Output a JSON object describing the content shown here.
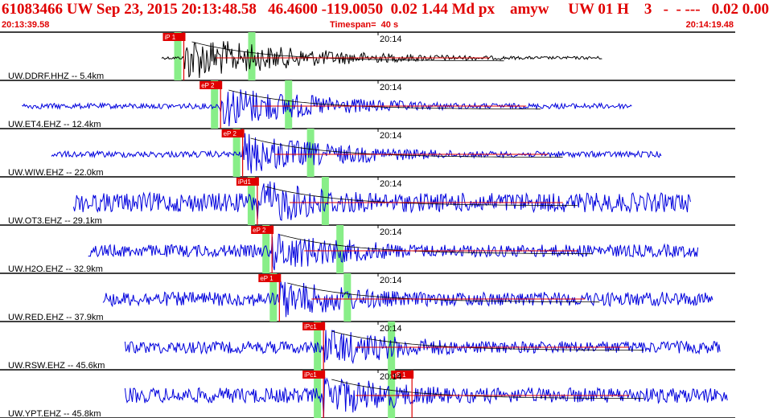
{
  "header": {
    "title": "61083466 UW Sep 23, 2015 20:13:48.58   46.4600 -119.0050  0.02 1.44 Md px    amyw     UW 01 H    3   -  - ---   0.02 0.00",
    "start_time": "20:13:39.58",
    "timespan": "Timespan=  40 s",
    "end_time": "20:14:19.48"
  },
  "tick_label": "20:14",
  "colors": {
    "header_red": "#e00000",
    "trace_first": "#000000",
    "trace": "#0000dd",
    "pick_red": "#e00000",
    "window_green": "#88ee88",
    "coda_fit": "#000000"
  },
  "traces": [
    {
      "label": "UW.DDRF.HHZ -- 5.4km",
      "pick": "iP 1",
      "pick2": "",
      "color": "black",
      "start": 0.22,
      "end": 0.82,
      "onset": 0.25,
      "amp": 30,
      "noise": 0.06
    },
    {
      "label": "UW.ET4.EHZ -- 12.4km",
      "pick": "eP 2",
      "pick2": "",
      "color": "blue",
      "start": 0.03,
      "end": 0.86,
      "onset": 0.3,
      "amp": 28,
      "noise": 0.12
    },
    {
      "label": "UW.WIW.EHZ -- 22.0km",
      "pick": "eP 2",
      "pick2": "",
      "color": "blue",
      "start": 0.07,
      "end": 0.9,
      "onset": 0.33,
      "amp": 27,
      "noise": 0.14
    },
    {
      "label": "UW.OT3.EHZ -- 29.1km",
      "pick": "iPd1",
      "pick2": "",
      "color": "blue",
      "start": 0.1,
      "end": 0.94,
      "onset": 0.35,
      "amp": 30,
      "noise": 0.4
    },
    {
      "label": "UW.H2O.EHZ -- 32.9km",
      "pick": "eP 2",
      "pick2": "",
      "color": "blue",
      "start": 0.12,
      "end": 0.95,
      "onset": 0.37,
      "amp": 26,
      "noise": 0.3
    },
    {
      "label": "UW.RED.EHZ -- 37.9km",
      "pick": "eP 1",
      "pick2": "",
      "color": "blue",
      "start": 0.14,
      "end": 0.97,
      "onset": 0.38,
      "amp": 25,
      "noise": 0.35
    },
    {
      "label": "UW.RSW.EHZ -- 45.6km",
      "pick": "iPc1",
      "pick2": "",
      "color": "blue",
      "start": 0.17,
      "end": 0.98,
      "onset": 0.44,
      "amp": 25,
      "noise": 0.3
    },
    {
      "label": "UW.YPT.EHZ -- 45.8km",
      "pick": "iPc1",
      "pick2": "eS 1",
      "color": "blue",
      "start": 0.17,
      "end": 0.99,
      "onset": 0.44,
      "amp": 27,
      "noise": 0.35
    }
  ]
}
